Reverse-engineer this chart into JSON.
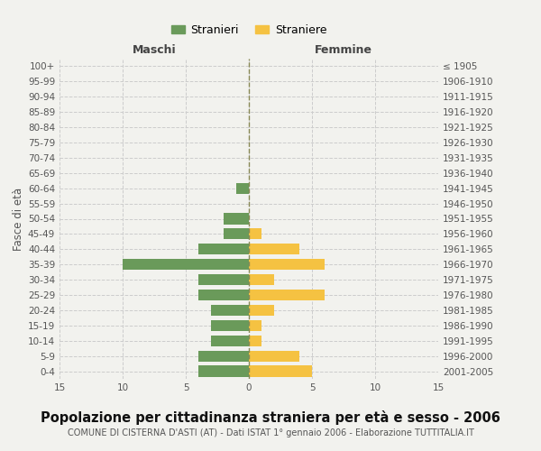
{
  "age_groups": [
    "0-4",
    "5-9",
    "10-14",
    "15-19",
    "20-24",
    "25-29",
    "30-34",
    "35-39",
    "40-44",
    "45-49",
    "50-54",
    "55-59",
    "60-64",
    "65-69",
    "70-74",
    "75-79",
    "80-84",
    "85-89",
    "90-94",
    "95-99",
    "100+"
  ],
  "birth_years": [
    "2001-2005",
    "1996-2000",
    "1991-1995",
    "1986-1990",
    "1981-1985",
    "1976-1980",
    "1971-1975",
    "1966-1970",
    "1961-1965",
    "1956-1960",
    "1951-1955",
    "1946-1950",
    "1941-1945",
    "1936-1940",
    "1931-1935",
    "1926-1930",
    "1921-1925",
    "1916-1920",
    "1911-1915",
    "1906-1910",
    "≤ 1905"
  ],
  "maschi": [
    4,
    4,
    3,
    3,
    3,
    4,
    4,
    10,
    4,
    2,
    2,
    0,
    1,
    0,
    0,
    0,
    0,
    0,
    0,
    0,
    0
  ],
  "femmine": [
    5,
    4,
    1,
    1,
    2,
    6,
    2,
    6,
    4,
    1,
    0,
    0,
    0,
    0,
    0,
    0,
    0,
    0,
    0,
    0,
    0
  ],
  "maschi_color": "#6a9a5a",
  "femmine_color": "#f5c242",
  "background_color": "#f2f2ee",
  "grid_color": "#cccccc",
  "title": "Popolazione per cittadinanza straniera per età e sesso - 2006",
  "subtitle": "COMUNE DI CISTERNA D'ASTI (AT) - Dati ISTAT 1° gennaio 2006 - Elaborazione TUTTITALIA.IT",
  "xlabel_left": "Maschi",
  "xlabel_right": "Femmine",
  "ylabel_left": "Fasce di età",
  "legend_maschi": "Stranieri",
  "legend_femmine": "Straniere",
  "xlim": 15,
  "title_fontsize": 10.5,
  "subtitle_fontsize": 7,
  "tick_fontsize": 7.5
}
